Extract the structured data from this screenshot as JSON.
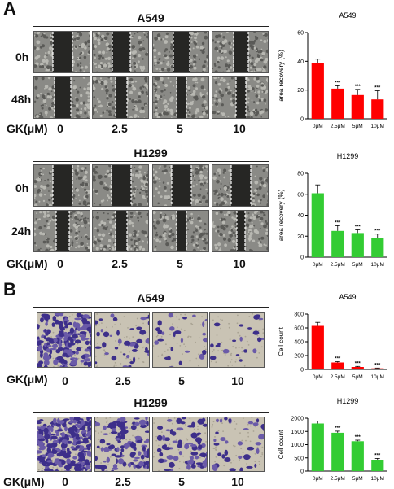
{
  "panels": {
    "A": {
      "letter": "A",
      "groups": [
        {
          "title": "A549",
          "rows": [
            "0h",
            "48h"
          ],
          "gk_label": "GK(μM)",
          "concentrations": [
            "0",
            "2.5",
            "5",
            "10"
          ]
        },
        {
          "title": "H1299",
          "rows": [
            "0h",
            "24h"
          ],
          "gk_label": "GK(μM)",
          "concentrations": [
            "0",
            "2.5",
            "5",
            "10"
          ]
        }
      ]
    },
    "B": {
      "letter": "B",
      "groups": [
        {
          "title": "A549",
          "gk_label": "GK(μM)",
          "concentrations": [
            "0",
            "2.5",
            "5",
            "10"
          ]
        },
        {
          "title": "H1299",
          "gk_label": "GK(μM)",
          "concentrations": [
            "0",
            "2.5",
            "5",
            "10"
          ]
        }
      ]
    }
  },
  "chart_data": [
    {
      "id": "A549-wound",
      "type": "bar",
      "title": "A549",
      "ylabel": "area recovery (%)",
      "categories": [
        "0μM",
        "2.5μM",
        "5μM",
        "10μM"
      ],
      "values": [
        39,
        21,
        16.5,
        13.5
      ],
      "errors": [
        2.5,
        2,
        4,
        6
      ],
      "significance": [
        "",
        "***",
        "***",
        "***"
      ],
      "ylim": [
        0,
        60
      ],
      "yticks": [
        "0",
        "20",
        "40",
        "60"
      ],
      "color": "#ff0000"
    },
    {
      "id": "H1299-wound",
      "type": "bar",
      "title": "H1299",
      "ylabel": "area recovery (%)",
      "categories": [
        "0μM",
        "2.5μM",
        "5μM",
        "10μM"
      ],
      "values": [
        61,
        25,
        23,
        18
      ],
      "errors": [
        8,
        5,
        3,
        4
      ],
      "significance": [
        "",
        "***",
        "***",
        "***"
      ],
      "ylim": [
        0,
        80
      ],
      "yticks": [
        "0",
        "20",
        "40",
        "60",
        "80"
      ],
      "color": "#33cc33"
    },
    {
      "id": "A549-count",
      "type": "bar",
      "title": "A549",
      "ylabel": "Cell count",
      "categories": [
        "0μM",
        "2.5μM",
        "5μM",
        "10μM"
      ],
      "values": [
        630,
        100,
        35,
        15
      ],
      "errors": [
        50,
        12,
        8,
        5
      ],
      "significance": [
        "",
        "***",
        "***",
        "***"
      ],
      "ylim": [
        0,
        800
      ],
      "yticks": [
        "0",
        "200",
        "400",
        "600",
        "800"
      ],
      "color": "#ff0000"
    },
    {
      "id": "H1299-count",
      "type": "bar",
      "title": "H1299",
      "ylabel": "Cell count",
      "categories": [
        "0μM",
        "2.5μM",
        "5μM",
        "10μM"
      ],
      "values": [
        1800,
        1450,
        1130,
        430
      ],
      "errors": [
        90,
        60,
        40,
        50
      ],
      "significance": [
        "",
        "***",
        "***",
        "***"
      ],
      "ylim": [
        0,
        2000
      ],
      "yticks": [
        "0",
        "500",
        "1000",
        "1500",
        "2000"
      ],
      "color": "#33cc33"
    }
  ]
}
